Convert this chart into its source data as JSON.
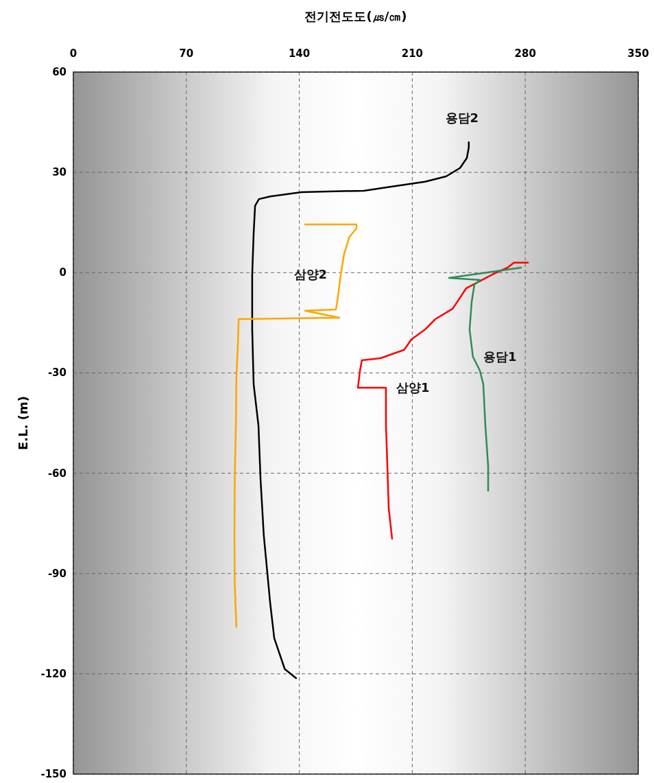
{
  "chart_data": {
    "type": "line",
    "xlabel": "전기전도도(㎲/㎝)",
    "ylabel": "E.L. (m)",
    "xlim": [
      0,
      350
    ],
    "xticks": [
      0,
      70,
      140,
      210,
      280,
      350
    ],
    "ylim": [
      -150,
      60
    ],
    "yticks": [
      -150,
      -120,
      -90,
      -60,
      -30,
      0,
      30,
      60
    ],
    "grid": true,
    "marker": "none",
    "line_style": "solid",
    "series": [
      {
        "name": "용담2",
        "color": "#000000",
        "x": [
          138,
          131,
          124.5,
          122,
          120,
          118,
          116,
          114.7,
          111.7,
          110.8,
          110.8,
          111.7,
          112.6,
          115,
          122,
          141.5,
          180,
          197,
          218,
          231,
          239.6,
          243.8,
          245,
          245
        ],
        "values": [
          -121.3,
          -118.6,
          -109.4,
          -99,
          -88.8,
          -78.6,
          -62,
          -45.7,
          -33.4,
          -17,
          -0.6,
          11.8,
          20,
          22,
          22.8,
          24.1,
          24.5,
          25.7,
          27.2,
          28.8,
          31.3,
          34.3,
          37.4,
          39
        ]
      },
      {
        "name": "삼양2",
        "color": "#ffa500",
        "x": [
          101,
          100,
          99.8,
          100,
          100.7,
          101,
          102,
          102.4,
          164.8,
          143.6,
          162.7,
          163.5,
          165.7,
          167.8,
          171,
          175.4,
          175.4,
          143.6
        ],
        "values": [
          -106,
          -93,
          -78.6,
          -62,
          -45.7,
          -31.4,
          -21,
          -13.9,
          -13.5,
          -11.4,
          -11,
          -8.8,
          -0.6,
          5.6,
          10.7,
          13.2,
          14.4,
          14.4
        ]
      },
      {
        "name": "삼양1",
        "color": "#ff0000",
        "x": [
          197.5,
          195.4,
          194.6,
          193.7,
          193.7,
          176.3,
          177.6,
          178.8,
          190.3,
          205,
          209.4,
          218,
          224.3,
          235,
          243.4,
          260.4,
          269,
          273,
          281.7
        ],
        "values": [
          -79.6,
          -70.4,
          -58,
          -45.7,
          -34.4,
          -34.4,
          -29.3,
          -26.2,
          -25.6,
          -23.1,
          -20,
          -17,
          -13.9,
          -10.8,
          -4.7,
          -0.4,
          1.5,
          3,
          3
        ]
      },
      {
        "name": "용담1",
        "color": "#2e8b57",
        "x": [
          257,
          257,
          255.3,
          254,
          251.9,
          247.6,
          245.5,
          246.8,
          248.5,
          252,
          232.8,
          277.4
        ],
        "values": [
          -65.2,
          -58,
          -45.7,
          -33.4,
          -29.3,
          -25.2,
          -17,
          -8.8,
          -3.6,
          -2.2,
          -1.6,
          1.5
        ]
      }
    ]
  }
}
